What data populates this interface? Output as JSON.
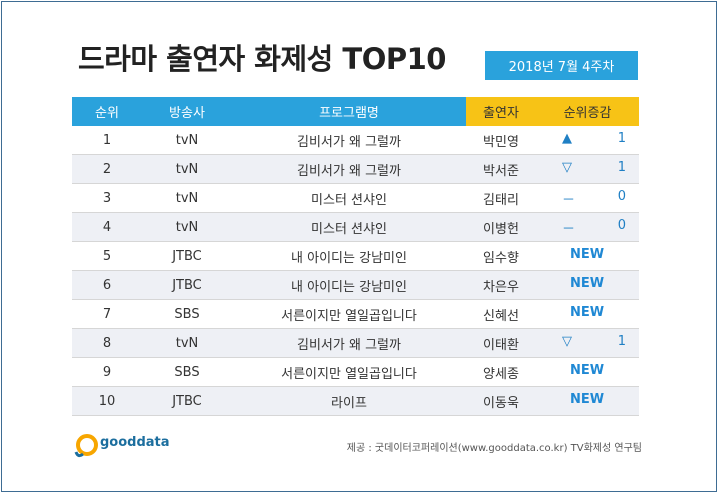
{
  "header": {
    "title": "드라마 출연자 화제성 TOP10",
    "period": "2018년  7월 4주차"
  },
  "table": {
    "columns": [
      "순위",
      "방송사",
      "프로그램명",
      "출연자",
      "순위증감"
    ],
    "rows": [
      {
        "rank": "1",
        "channel": "tvN",
        "program": "김비서가 왜 그럴까",
        "actor": "박민영",
        "change_symbol": "▲",
        "change_value": "1"
      },
      {
        "rank": "2",
        "channel": "tvN",
        "program": "김비서가 왜 그럴까",
        "actor": "박서준",
        "change_symbol": "▽",
        "change_value": "1"
      },
      {
        "rank": "3",
        "channel": "tvN",
        "program": "미스터 션샤인",
        "actor": "김태리",
        "change_symbol": "－",
        "change_value": "0"
      },
      {
        "rank": "4",
        "channel": "tvN",
        "program": "미스터 션샤인",
        "actor": "이병헌",
        "change_symbol": "－",
        "change_value": "0"
      },
      {
        "rank": "5",
        "channel": "JTBC",
        "program": "내 아이디는 강남미인",
        "actor": "임수향",
        "change_new": "NEW"
      },
      {
        "rank": "6",
        "channel": "JTBC",
        "program": "내 아이디는 강남미인",
        "actor": "차은우",
        "change_new": "NEW"
      },
      {
        "rank": "7",
        "channel": "SBS",
        "program": "서른이지만 열일곱입니다",
        "actor": "신혜선",
        "change_new": "NEW"
      },
      {
        "rank": "8",
        "channel": "tvN",
        "program": "김비서가 왜 그럴까",
        "actor": "이태환",
        "change_symbol": "▽",
        "change_value": "1"
      },
      {
        "rank": "9",
        "channel": "SBS",
        "program": "서른이지만 열일곱입니다",
        "actor": "양세종",
        "change_new": "NEW"
      },
      {
        "rank": "10",
        "channel": "JTBC",
        "program": "라이프",
        "actor": "이동욱",
        "change_new": "NEW"
      }
    ]
  },
  "footer": {
    "logo_text": "gooddata",
    "source": "제공 : 굿데이터코퍼레이션(www.gooddata.co.kr) TV화제성 연구팀"
  },
  "colors": {
    "header_blue": "#2aa2dc",
    "header_gold": "#f7c316",
    "change_blue": "#1f7fc4",
    "border": "#3e6c93"
  }
}
